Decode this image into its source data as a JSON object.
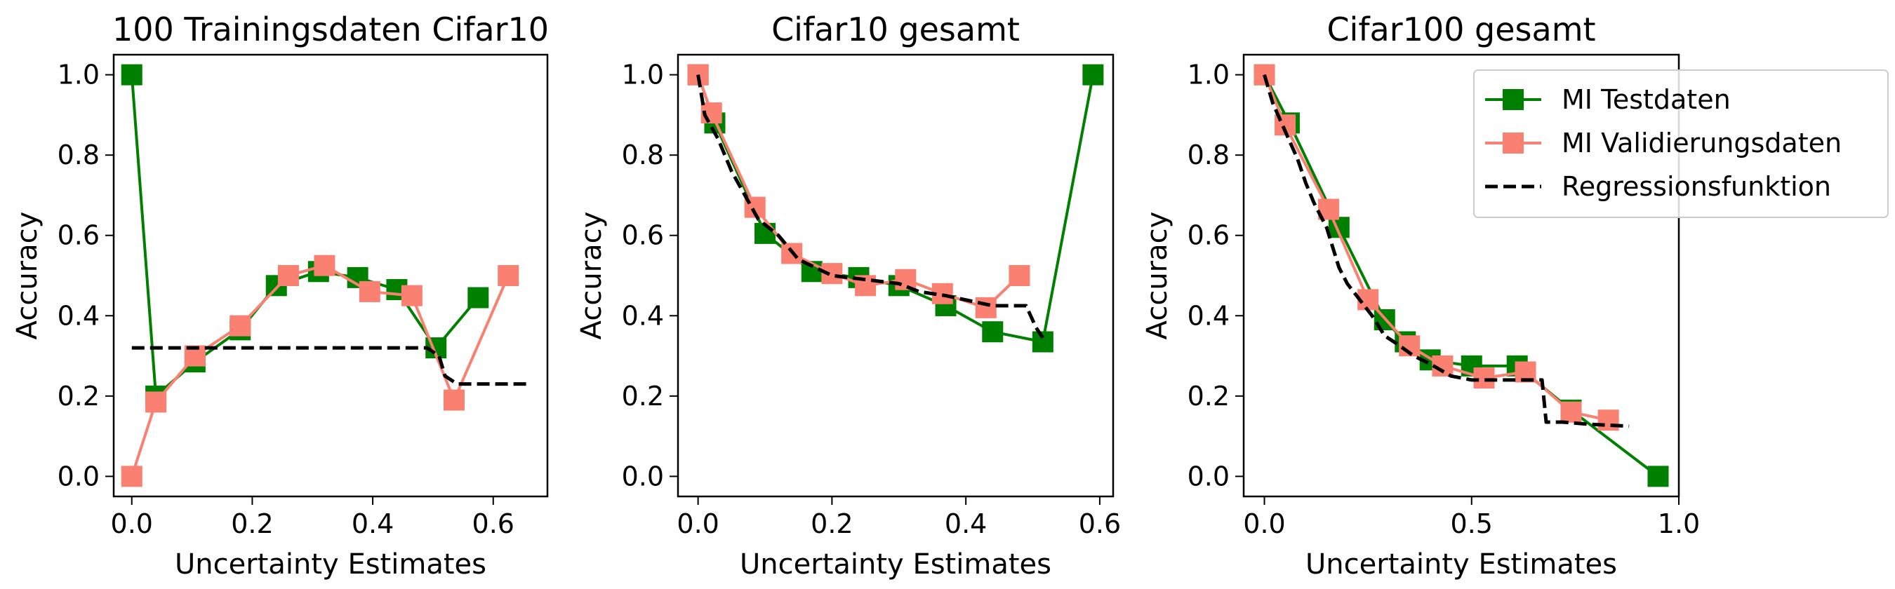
{
  "colors": {
    "testdaten": "#008000",
    "validierungsdaten": "#fa8072",
    "regression": "#000000"
  },
  "legend": {
    "placement": "top-right",
    "entries": [
      "MI Testdaten",
      "MI Validierungsdaten",
      "Regressionsfunktion"
    ]
  },
  "chart_data": [
    {
      "type": "line",
      "title": "100 Trainingsdaten Cifar10",
      "xlabel": "Uncertainty Estimates",
      "ylabel": "Accuracy",
      "xlim": [
        -0.03,
        0.69
      ],
      "ylim": [
        -0.05,
        1.05
      ],
      "xticks": [
        0.0,
        0.2,
        0.4,
        0.6
      ],
      "xtick_labels": [
        "0.0",
        "0.2",
        "0.4",
        "0.6"
      ],
      "yticks": [
        0.0,
        0.2,
        0.4,
        0.6,
        0.8,
        1.0
      ],
      "ytick_labels": [
        "0.0",
        "0.2",
        "0.4",
        "0.6",
        "0.8",
        "1.0"
      ],
      "grid": false,
      "series": [
        {
          "name": "MI Testdaten",
          "x": [
            0.0,
            0.04,
            0.105,
            0.18,
            0.24,
            0.31,
            0.375,
            0.44,
            0.505,
            0.575
          ],
          "y": [
            1.0,
            0.2,
            0.285,
            0.365,
            0.475,
            0.51,
            0.495,
            0.465,
            0.32,
            0.445
          ]
        },
        {
          "name": "MI Validierungsdaten",
          "x": [
            0.0,
            0.04,
            0.105,
            0.18,
            0.26,
            0.32,
            0.395,
            0.465,
            0.535,
            0.625
          ],
          "y": [
            0.0,
            0.185,
            0.3,
            0.375,
            0.5,
            0.525,
            0.46,
            0.45,
            0.19,
            0.5
          ]
        },
        {
          "name": "Regressionsfunktion",
          "x": [
            0.0,
            0.49,
            0.51,
            0.52,
            0.54,
            0.66
          ],
          "y": [
            0.32,
            0.32,
            0.3,
            0.25,
            0.23,
            0.23
          ]
        }
      ]
    },
    {
      "type": "line",
      "title": "Cifar10 gesamt",
      "xlabel": "Uncertainty Estimates",
      "ylabel": "Accuracy",
      "xlim": [
        -0.03,
        0.62
      ],
      "ylim": [
        -0.05,
        1.05
      ],
      "xticks": [
        0.0,
        0.2,
        0.4,
        0.6
      ],
      "xtick_labels": [
        "0.0",
        "0.2",
        "0.4",
        "0.6"
      ],
      "yticks": [
        0.0,
        0.2,
        0.4,
        0.6,
        0.8,
        1.0
      ],
      "ytick_labels": [
        "0.0",
        "0.2",
        "0.4",
        "0.6",
        "0.8",
        "1.0"
      ],
      "grid": false,
      "series": [
        {
          "name": "MI Testdaten",
          "x": [
            0.0,
            0.025,
            0.1,
            0.17,
            0.24,
            0.3,
            0.37,
            0.44,
            0.515,
            0.59
          ],
          "y": [
            1.0,
            0.88,
            0.605,
            0.51,
            0.495,
            0.475,
            0.425,
            0.36,
            0.335,
            1.0
          ]
        },
        {
          "name": "MI Validierungsdaten",
          "x": [
            0.0,
            0.02,
            0.085,
            0.14,
            0.2,
            0.25,
            0.31,
            0.365,
            0.43,
            0.48
          ],
          "y": [
            1.0,
            0.905,
            0.67,
            0.555,
            0.505,
            0.475,
            0.49,
            0.455,
            0.42,
            0.5
          ]
        },
        {
          "name": "Regressionsfunktion",
          "x": [
            0.0,
            0.01,
            0.03,
            0.05,
            0.07,
            0.09,
            0.12,
            0.15,
            0.2,
            0.25,
            0.3,
            0.33,
            0.37,
            0.44,
            0.49,
            0.505,
            0.515
          ],
          "y": [
            1.0,
            0.9,
            0.84,
            0.76,
            0.7,
            0.64,
            0.6,
            0.54,
            0.5,
            0.49,
            0.48,
            0.46,
            0.45,
            0.425,
            0.425,
            0.37,
            0.345
          ]
        }
      ]
    },
    {
      "type": "line",
      "title": "Cifar100 gesamt",
      "xlabel": "Uncertainty Estimates",
      "ylabel": "Accuracy",
      "xlim": [
        -0.05,
        1.0
      ],
      "ylim": [
        -0.05,
        1.05
      ],
      "xticks": [
        0.0,
        0.5,
        1.0
      ],
      "xtick_labels": [
        "0.0",
        "0.5",
        "1.0"
      ],
      "yticks": [
        0.0,
        0.2,
        0.4,
        0.6,
        0.8,
        1.0
      ],
      "ytick_labels": [
        "0.0",
        "0.2",
        "0.4",
        "0.6",
        "0.8",
        "1.0"
      ],
      "grid": false,
      "series": [
        {
          "name": "MI Testdaten",
          "x": [
            0.0,
            0.06,
            0.18,
            0.29,
            0.34,
            0.4,
            0.5,
            0.61,
            0.74,
            0.95
          ],
          "y": [
            1.0,
            0.88,
            0.62,
            0.39,
            0.335,
            0.29,
            0.275,
            0.275,
            0.165,
            0.0
          ]
        },
        {
          "name": "MI Validierungsdaten",
          "x": [
            0.0,
            0.05,
            0.155,
            0.25,
            0.35,
            0.43,
            0.53,
            0.63,
            0.74,
            0.83
          ],
          "y": [
            1.0,
            0.875,
            0.665,
            0.44,
            0.325,
            0.275,
            0.245,
            0.26,
            0.16,
            0.14
          ]
        },
        {
          "name": "Regressionsfunktion",
          "x": [
            0.0,
            0.02,
            0.05,
            0.08,
            0.1,
            0.12,
            0.15,
            0.18,
            0.2,
            0.23,
            0.26,
            0.29,
            0.32,
            0.36,
            0.4,
            0.45,
            0.5,
            0.55,
            0.6,
            0.64,
            0.67,
            0.68,
            0.72,
            0.78,
            0.88
          ],
          "y": [
            1.0,
            0.93,
            0.86,
            0.79,
            0.73,
            0.68,
            0.62,
            0.52,
            0.48,
            0.44,
            0.4,
            0.35,
            0.33,
            0.3,
            0.28,
            0.25,
            0.24,
            0.24,
            0.24,
            0.24,
            0.24,
            0.135,
            0.135,
            0.13,
            0.125
          ]
        }
      ]
    }
  ]
}
